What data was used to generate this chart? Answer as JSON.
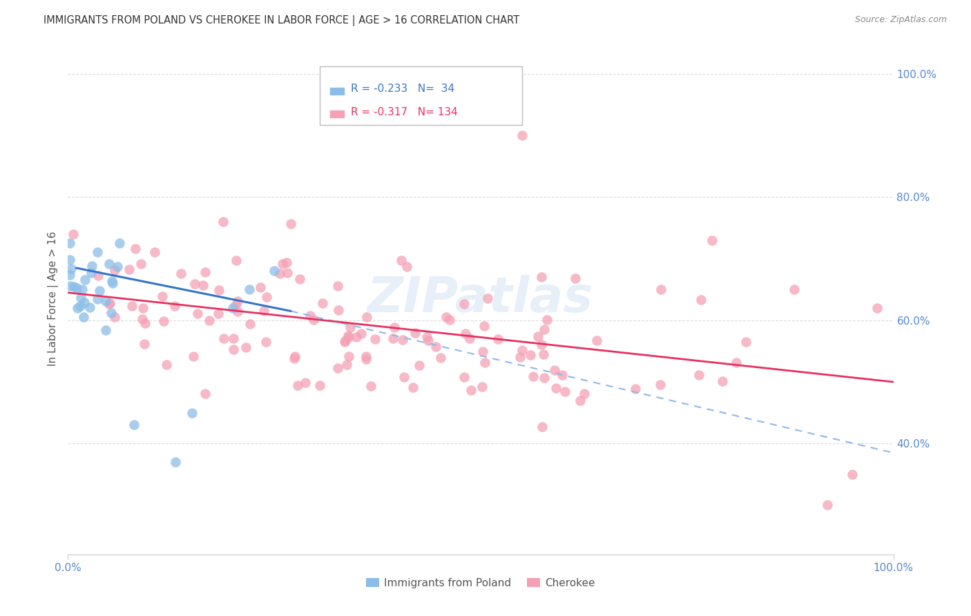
{
  "title": "IMMIGRANTS FROM POLAND VS CHEROKEE IN LABOR FORCE | AGE > 16 CORRELATION CHART",
  "source": "Source: ZipAtlas.com",
  "ylabel": "In Labor Force | Age > 16",
  "xlim": [
    0.0,
    1.0
  ],
  "ylim": [
    0.22,
    1.05
  ],
  "y_tick_vals": [
    1.0,
    0.8,
    0.6,
    0.4
  ],
  "y_tick_labels": [
    "100.0%",
    "80.0%",
    "60.0%",
    "40.0%"
  ],
  "x_tick_positions": [
    0.0,
    1.0
  ],
  "x_tick_labels": [
    "0.0%",
    "100.0%"
  ],
  "legend1_label": "Immigrants from Poland",
  "legend2_label": "Cherokee",
  "r1": -0.233,
  "n1": 34,
  "r2": -0.317,
  "n2": 134,
  "color_poland": "#8BBDE8",
  "color_cherokee": "#F5A0B5",
  "color_poland_line": "#3575C8",
  "color_cherokee_line": "#E83060",
  "color_dashed": "#90B8E8",
  "background_color": "#FFFFFF",
  "grid_color": "#DDDDDD",
  "title_color": "#333333",
  "tick_color": "#5588CC",
  "watermark": "ZIPatlas",
  "poland_line_x0": 0.01,
  "poland_line_x1": 0.27,
  "poland_line_y0": 0.685,
  "poland_line_y1": 0.615,
  "cherokee_line_x0": 0.0,
  "cherokee_line_x1": 1.0,
  "cherokee_line_y0": 0.645,
  "cherokee_line_y1": 0.5,
  "dashed_line_x0": 0.27,
  "dashed_line_x1": 1.0,
  "dashed_line_y0": 0.615,
  "dashed_line_y1": 0.385
}
